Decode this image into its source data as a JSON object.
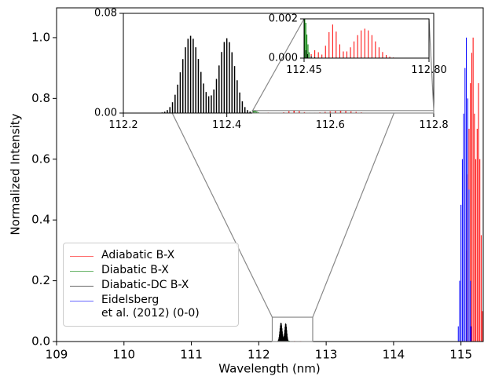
{
  "chart_data": {
    "type": "stem",
    "x_label": "Wavelength (nm)",
    "y_label": "Normalized Intensity",
    "xlim": [
      109,
      115.33
    ],
    "ylim": [
      0,
      1.098
    ],
    "xticks": [
      109,
      110,
      111,
      112,
      113,
      114,
      115
    ],
    "yticks": [
      {
        "value": 0,
        "label": "0.0"
      },
      0.2,
      0.4,
      0.6,
      0.8,
      {
        "value": 1,
        "label": "1.0"
      }
    ],
    "legend": "lower left",
    "series": [
      {
        "name": "Adiabatic B-X",
        "color": "#ff0000",
        "x": [
          112.46,
          112.47,
          112.48,
          112.49,
          112.5,
          112.51,
          112.52,
          112.53,
          112.54,
          112.55,
          112.56,
          112.57,
          112.58,
          112.59,
          112.6,
          112.61,
          112.62,
          112.63,
          112.64,
          112.65,
          112.66,
          112.67,
          112.68,
          112.69,
          112.7,
          112.71,
          112.72,
          112.74,
          112.76,
          112.78,
          115.08,
          115.1,
          115.12,
          115.14,
          115.16,
          115.18,
          115.2,
          115.22,
          115.24,
          115.26,
          115.28,
          115.3,
          115.32
        ],
        "values": [
          1e-05,
          0.0002,
          0.0004,
          0.0003,
          0.00018,
          0.00063,
          0.00132,
          0.00171,
          0.00135,
          0.0007,
          0.00034,
          0.00034,
          0.00055,
          0.00085,
          0.00117,
          0.00141,
          0.0015,
          0.00141,
          0.00117,
          0.00085,
          0.00055,
          0.00031,
          0.00016,
          7e-05,
          3e-05,
          1e-05,
          1e-05,
          1e-05,
          1e-05,
          1e-05,
          0.3,
          0.55,
          0.7,
          0.85,
          0.95,
          1.0,
          0.75,
          0.6,
          0.7,
          0.85,
          0.6,
          0.35,
          0.1
        ]
      },
      {
        "name": "Diabatic B-X",
        "color": "#008000",
        "x": [
          112.45,
          112.452,
          112.455,
          112.458,
          112.461,
          112.464
        ],
        "values": [
          0.0025,
          0.0022,
          0.0018,
          0.0012,
          0.0007,
          0.0003
        ]
      },
      {
        "name": "Diabatic-DC B-X",
        "color": "#000000",
        "x": [
          112.26,
          112.265,
          112.27,
          112.275,
          112.28,
          112.285,
          112.29,
          112.295,
          112.3,
          112.305,
          112.31,
          112.315,
          112.32,
          112.325,
          112.33,
          112.335,
          112.34,
          112.345,
          112.35,
          112.355,
          112.36,
          112.365,
          112.37,
          112.375,
          112.38,
          112.385,
          112.39,
          112.395,
          112.4,
          112.405,
          112.41,
          112.415,
          112.42,
          112.425,
          112.43,
          112.435,
          112.44,
          112.445,
          112.45,
          112.455,
          112.46,
          112.47,
          112.48
        ],
        "values": [
          0.0001,
          0.0001,
          0.0002,
          0.0005,
          0.0011,
          0.0024,
          0.0048,
          0.0087,
          0.0147,
          0.0228,
          0.0327,
          0.0433,
          0.0528,
          0.0596,
          0.062,
          0.0596,
          0.0528,
          0.0434,
          0.033,
          0.0237,
          0.0169,
          0.0135,
          0.0142,
          0.0189,
          0.0274,
          0.0382,
          0.049,
          0.057,
          0.06,
          0.0569,
          0.0488,
          0.0377,
          0.0263,
          0.0165,
          0.0094,
          0.0048,
          0.0024,
          0.0012,
          0.0008,
          0.0004,
          0.0002,
          0.0001,
          4e-05
        ]
      },
      {
        "name": "Eidelsberg\net al. (2012) (0-0)",
        "color": "#0000ff",
        "x": [
          114.96,
          114.98,
          115.0,
          115.02,
          115.04,
          115.06,
          115.08,
          115.1,
          115.12,
          115.14,
          115.15
        ],
        "values": [
          0.05,
          0.2,
          0.45,
          0.6,
          0.75,
          0.9,
          1.0,
          0.8,
          0.5,
          0.2,
          0.05
        ]
      }
    ],
    "insets": [
      {
        "xlim": [
          112.2,
          112.8
        ],
        "ylim": [
          0,
          0.08
        ],
        "xticks": [
          112.2,
          112.4,
          112.6,
          112.8
        ],
        "yticks": [
          {
            "value": 0,
            "label": "0.00"
          },
          0.08
        ]
      },
      {
        "xlim": [
          112.45,
          112.8
        ],
        "ylim": [
          0,
          0.002
        ],
        "xticks": [
          112.45,
          {
            "value": 112.8,
            "label": "112.80"
          }
        ],
        "yticks": [
          {
            "value": 0,
            "label": "0.000"
          },
          0.002
        ]
      }
    ]
  }
}
